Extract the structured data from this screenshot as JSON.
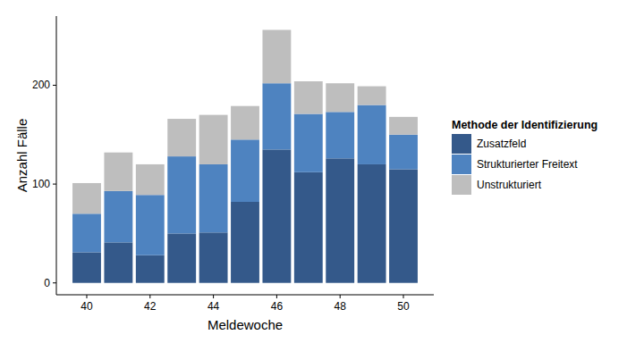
{
  "chart_data": {
    "type": "bar",
    "stacked": true,
    "grid": false,
    "legend": "right",
    "x_label": "Meldewoche",
    "y_label": "Anzahl Fälle",
    "legend_title": "Methode der Identifizierung",
    "categories": [
      40,
      null,
      42,
      null,
      44,
      null,
      46,
      null,
      48,
      null,
      50
    ],
    "series": [
      {
        "name": "Zusatzfeld",
        "color": "#34598a",
        "values": [
          31,
          41,
          28,
          50,
          51,
          82,
          135,
          112,
          126,
          120,
          115
        ]
      },
      {
        "name": "Strukturierter Freitext",
        "color": "#4e83c0",
        "values": [
          39,
          52,
          61,
          78,
          69,
          63,
          67,
          59,
          47,
          60,
          35
        ]
      },
      {
        "name": "Unstrukturiert",
        "color": "#bebebe",
        "values": [
          31,
          39,
          31,
          38,
          50,
          34,
          54,
          33,
          29,
          19,
          18
        ]
      }
    ],
    "ylim": [
      -12,
      270
    ],
    "yticks": [
      0,
      100,
      200
    ]
  }
}
